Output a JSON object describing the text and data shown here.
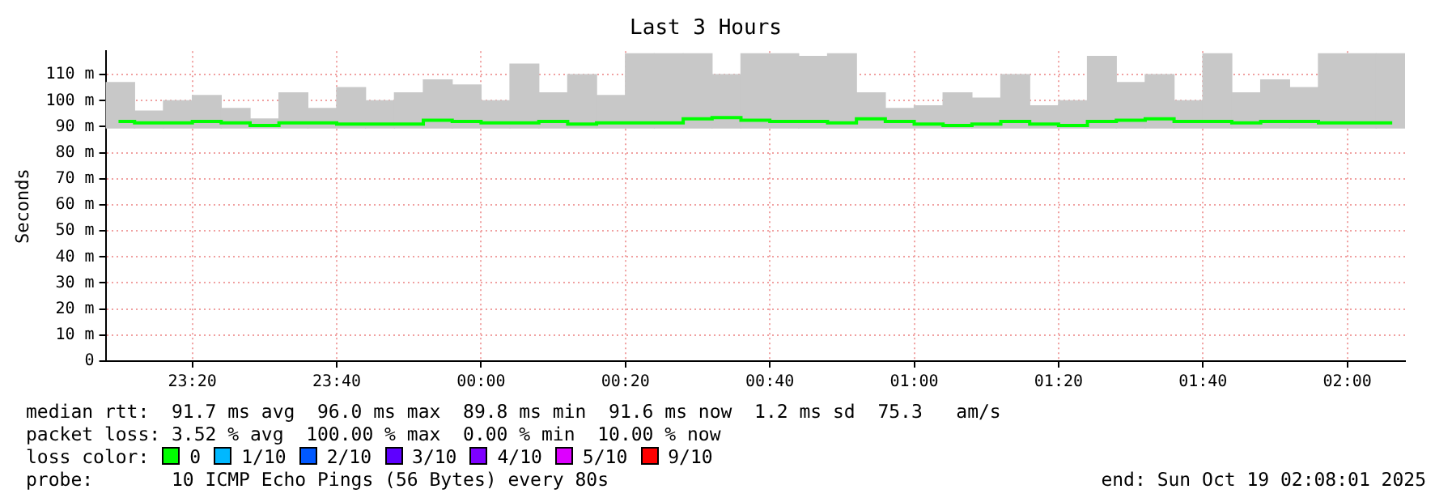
{
  "chart_data": {
    "type": "bar",
    "title": "Last 3 Hours",
    "ylabel": "Seconds",
    "x": [
      "2025-10-18T23:10",
      "2025-10-18T23:14",
      "2025-10-18T23:18",
      "2025-10-18T23:22",
      "2025-10-18T23:26",
      "2025-10-18T23:30",
      "2025-10-18T23:34",
      "2025-10-18T23:38",
      "2025-10-18T23:42",
      "2025-10-18T23:46",
      "2025-10-18T23:50",
      "2025-10-18T23:54",
      "2025-10-18T23:58",
      "2025-10-19T00:02",
      "2025-10-19T00:06",
      "2025-10-19T00:10",
      "2025-10-19T00:14",
      "2025-10-19T00:18",
      "2025-10-19T00:22",
      "2025-10-19T00:26",
      "2025-10-19T00:30",
      "2025-10-19T00:34",
      "2025-10-19T00:38",
      "2025-10-19T00:42",
      "2025-10-19T00:46",
      "2025-10-19T00:50",
      "2025-10-19T00:54",
      "2025-10-19T00:58",
      "2025-10-19T01:02",
      "2025-10-19T01:06",
      "2025-10-19T01:10",
      "2025-10-19T01:14",
      "2025-10-19T01:18",
      "2025-10-19T01:22",
      "2025-10-19T01:26",
      "2025-10-19T01:30",
      "2025-10-19T01:34",
      "2025-10-19T01:38",
      "2025-10-19T01:42",
      "2025-10-19T01:46",
      "2025-10-19T01:50",
      "2025-10-19T01:54",
      "2025-10-19T01:58",
      "2025-10-19T02:02",
      "2025-10-19T02:06"
    ],
    "series": [
      {
        "color": "#c8c8c8",
        "base": [
          89.5,
          89.5,
          89.5,
          89.5,
          89.5,
          89.5,
          89.5,
          89.5,
          89.5,
          89.5,
          89.5,
          89.5,
          89.5,
          89.5,
          89.5,
          89.5,
          89.5,
          89.5,
          89.5,
          89.5,
          89.5,
          89.5,
          89.5,
          89.5,
          89.5,
          89.5,
          89.5,
          89.5,
          89.5,
          89.5,
          89.5,
          89.5,
          89.5,
          89.5,
          89.5,
          89.5,
          89.5,
          89.5,
          89.5,
          89.5,
          89.5,
          89.5,
          89.5,
          89.5,
          89.5
        ],
        "values": [
          17.5,
          6.5,
          10.5,
          12.5,
          7.5,
          3.5,
          13.5,
          7.5,
          15.5,
          10.5,
          13.5,
          18.5,
          16.5,
          10.5,
          24.5,
          13.5,
          20.5,
          12.5,
          28.5,
          28.5,
          28.5,
          20.5,
          28.5,
          28.5,
          27.5,
          28.5,
          13.5,
          7.5,
          8.5,
          13.5,
          11.5,
          20.5,
          8.5,
          10.5,
          27.5,
          17.5,
          20.5,
          10.5,
          28.5,
          13.5,
          18.5,
          15.5,
          28.5,
          28.5,
          28.5
        ]
      },
      {
        "type": "step",
        "color": "#00ff00",
        "values": [
          92,
          91.5,
          91.5,
          92,
          91.5,
          90.5,
          91.5,
          91.5,
          91,
          91,
          91,
          92.5,
          92,
          91.5,
          91.5,
          92,
          91,
          91.5,
          91.5,
          91.5,
          93,
          93.5,
          92.5,
          92,
          92,
          91.5,
          93,
          92,
          91,
          90.5,
          91,
          92,
          91,
          90.5,
          92,
          92.5,
          93,
          92,
          92,
          91.5,
          92,
          92,
          91.5,
          91.5,
          91.5
        ]
      },
      {
        "type": "line",
        "name": "0",
        "color": "#00ff00",
        "values": [
          null,
          null,
          null,
          null,
          null,
          null,
          null,
          null,
          null,
          null,
          null,
          null,
          null,
          null,
          null,
          null,
          null,
          null,
          null,
          null,
          null,
          null,
          null,
          null,
          null,
          null,
          null,
          null,
          null,
          null,
          null,
          null,
          null,
          null,
          null,
          null,
          null,
          null,
          null,
          null,
          null,
          null,
          null,
          null,
          null
        ]
      },
      {
        "type": "line",
        "name": "1/10",
        "color": "#00b8ff",
        "values": [
          null,
          null,
          null,
          null,
          null,
          null,
          null,
          null,
          null,
          null,
          null,
          null,
          null,
          null,
          null,
          null,
          null,
          null,
          null,
          null,
          null,
          null,
          null,
          null,
          null,
          null,
          null,
          null,
          null,
          null,
          null,
          null,
          null,
          null,
          null,
          null,
          null,
          null,
          null,
          null,
          null,
          null,
          null,
          null,
          null
        ]
      },
      {
        "type": "line",
        "name": "2/10",
        "color": "#0059ff",
        "values": [
          null,
          null,
          null,
          null,
          null,
          null,
          null,
          null,
          null,
          null,
          null,
          null,
          null,
          null,
          null,
          null,
          null,
          null,
          null,
          null,
          null,
          null,
          null,
          null,
          null,
          null,
          null,
          null,
          null,
          null,
          null,
          null,
          null,
          null,
          null,
          null,
          null,
          null,
          null,
          null,
          null,
          null,
          null,
          null,
          null
        ]
      },
      {
        "type": "line",
        "name": "3/10",
        "color": "#5e00ff",
        "values": [
          null,
          null,
          null,
          null,
          null,
          null,
          null,
          null,
          null,
          null,
          null,
          null,
          null,
          null,
          null,
          null,
          null,
          null,
          null,
          null,
          null,
          null,
          null,
          null,
          null,
          null,
          null,
          null,
          null,
          null,
          null,
          null,
          null,
          null,
          null,
          null,
          null,
          null,
          null,
          null,
          null,
          null,
          null,
          null,
          null
        ]
      },
      {
        "type": "line",
        "name": "4/10",
        "color": "#7e00ff",
        "values": [
          null,
          null,
          null,
          null,
          null,
          null,
          null,
          null,
          null,
          null,
          null,
          null,
          null,
          null,
          null,
          null,
          null,
          null,
          null,
          null,
          null,
          null,
          null,
          null,
          null,
          null,
          null,
          null,
          null,
          null,
          null,
          null,
          null,
          null,
          null,
          null,
          null,
          null,
          null,
          null,
          null,
          null,
          null,
          null,
          null
        ]
      },
      {
        "type": "line",
        "name": "5/10",
        "color": "#dd00ff",
        "values": [
          null,
          null,
          null,
          null,
          null,
          null,
          null,
          null,
          null,
          null,
          null,
          null,
          null,
          null,
          null,
          null,
          null,
          null,
          null,
          null,
          null,
          null,
          null,
          null,
          null,
          null,
          null,
          null,
          null,
          null,
          null,
          null,
          null,
          null,
          null,
          null,
          null,
          null,
          null,
          null,
          null,
          null,
          null,
          null,
          null
        ]
      },
      {
        "type": "line",
        "name": "9/10",
        "color": "#ff0000",
        "values": [
          null,
          null,
          null,
          null,
          null,
          null,
          null,
          null,
          null,
          null,
          null,
          null,
          null,
          null,
          null,
          null,
          null,
          null,
          null,
          null,
          null,
          null,
          null,
          null,
          null,
          null,
          null,
          null,
          null,
          null,
          null,
          null,
          null,
          null,
          null,
          null,
          null,
          null,
          null,
          null,
          null,
          null,
          null,
          null,
          null
        ]
      }
    ],
    "xlim": [
      "2025-10-18T23:08",
      "2025-10-19T02:08"
    ],
    "xticks": [
      {
        "value": "2025-10-18T23:20",
        "label": "23:20"
      },
      {
        "value": "2025-10-18T23:40",
        "label": "23:40"
      },
      {
        "value": "2025-10-19T00:00",
        "label": "00:00"
      },
      {
        "value": "2025-10-19T00:20",
        "label": "00:20"
      },
      {
        "value": "2025-10-19T00:40",
        "label": "00:40"
      },
      {
        "value": "2025-10-19T01:00",
        "label": "01:00"
      },
      {
        "value": "2025-10-19T01:20",
        "label": "01:20"
      },
      {
        "value": "2025-10-19T01:40",
        "label": "01:40"
      },
      {
        "value": "2025-10-19T02:00",
        "label": "02:00"
      }
    ],
    "ylim": [
      0,
      119
    ],
    "yticks": [
      0,
      {
        "value": 10,
        "label": "10 m"
      },
      {
        "value": 20,
        "label": "20 m"
      },
      {
        "value": 30,
        "label": "30 m"
      },
      {
        "value": 40,
        "label": "40 m"
      },
      {
        "value": 50,
        "label": "50 m"
      },
      {
        "value": 60,
        "label": "60 m"
      },
      {
        "value": 70,
        "label": "70 m"
      },
      {
        "value": 80,
        "label": "80 m"
      },
      {
        "value": 90,
        "label": "90 m"
      },
      {
        "value": 100,
        "label": "100 m"
      },
      {
        "value": 110,
        "label": "110 m"
      }
    ],
    "grid": true,
    "legend": "bottom",
    "legend_title": "loss color:",
    "annotations": [
      "median rtt:  91.7 ms avg  96.0 ms max  89.8 ms min  91.6 ms now  1.2 ms sd  75.3   am/s",
      "packet loss: 3.52 % avg  100.00 % max  0.00 % min  10.00 % now",
      "probe:       10 ICMP Echo Pings (56 Bytes) every 80s",
      "end: Sun Oct 19 02:08:01 2025"
    ]
  }
}
